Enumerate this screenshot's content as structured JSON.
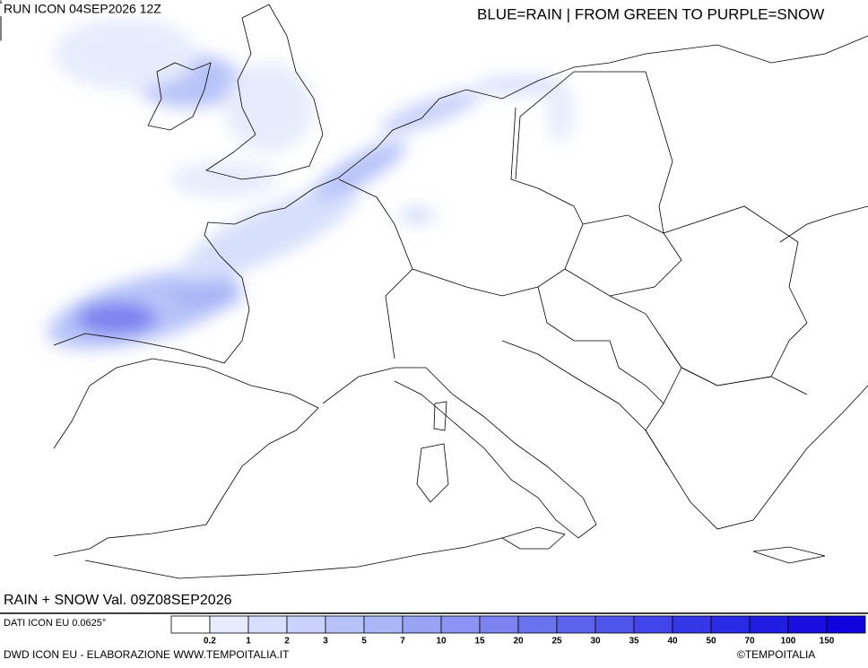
{
  "header": {
    "run": "RUN ICON 04SEP2026 12Z",
    "legend_note": "BLUE=RAIN | FROM GREEN TO PURPLE=SNOW"
  },
  "map": {
    "validity": "RAIN + SNOW Val. 09Z08SEP2026"
  },
  "legend": {
    "source": "DATI ICON EU 0.0625°",
    "labels": [
      "0.2",
      "1",
      "2",
      "3",
      "5",
      "7",
      "10",
      "15",
      "20",
      "25",
      "30",
      "35",
      "40",
      "50",
      "70",
      "100",
      "150"
    ],
    "colors": [
      "#ffffff",
      "#e6ecfc",
      "#d6dffb",
      "#c8d2fa",
      "#b7c3f8",
      "#a8b5f6",
      "#97a4f4",
      "#8893f2",
      "#7a82f0",
      "#6b72ee",
      "#5d63ec",
      "#4f54ea",
      "#4245e8",
      "#3536e6",
      "#2a29e4",
      "#201ce2",
      "#170fe0",
      "#0e04de"
    ]
  },
  "footer": {
    "credit": "DWD ICON EU - ELABORAZIONE WWW.TEMPOITALIA.IT",
    "copyright": "©TEMPOITALIA"
  }
}
